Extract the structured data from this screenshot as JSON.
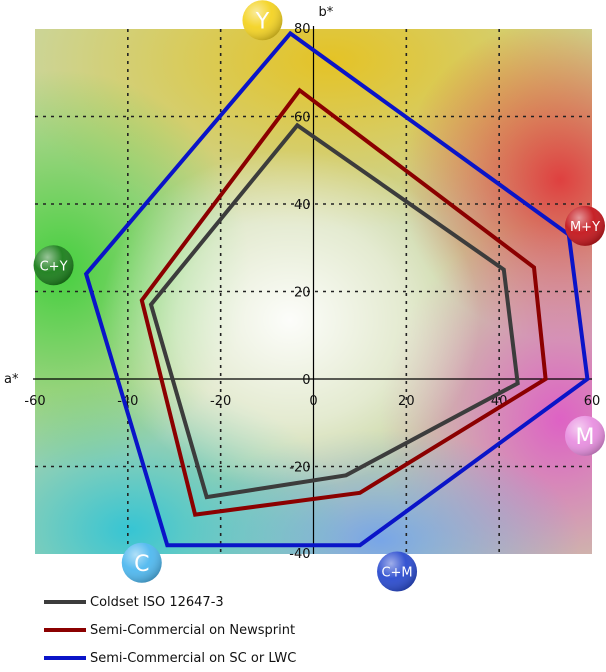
{
  "chart_data": {
    "type": "line",
    "title": "",
    "xlabel": "a*",
    "ylabel": "b*",
    "xlim": [
      -60,
      60
    ],
    "ylim": [
      -40,
      80
    ],
    "grid": true,
    "x_ticks": [
      -60,
      -40,
      -20,
      0,
      20,
      40,
      60
    ],
    "x_tick_labels": [
      "-60",
      "-40",
      "-20",
      "0",
      "20",
      "40",
      "60"
    ],
    "y_ticks": [
      -40,
      -20,
      0,
      20,
      40,
      60,
      80
    ],
    "y_tick_labels": [
      "-40",
      "-20",
      "0",
      "20",
      "40",
      "60",
      "80"
    ],
    "legend_position": "bottom-left",
    "series": [
      {
        "name": "Coldset ISO 12647-3",
        "color": "#3c3c3c",
        "closed": true,
        "x": [
          -3.5,
          41,
          44,
          7,
          -23,
          -35
        ],
        "y": [
          58,
          25,
          -1,
          -22,
          -27,
          17
        ]
      },
      {
        "name": "Semi-Commercial on Newsprint",
        "color": "#8b0000",
        "closed": true,
        "x": [
          -3,
          47.5,
          50,
          10,
          -25.5,
          -37
        ],
        "y": [
          66,
          25.5,
          0,
          -26,
          -31,
          18
        ]
      },
      {
        "name": "Semi-Commercial on SC or LWC",
        "color": "#0a14c8",
        "closed": true,
        "x": [
          -5,
          55,
          59,
          10,
          -31.5,
          -49
        ],
        "y": [
          79,
          33,
          0,
          -38,
          -38,
          24
        ]
      }
    ],
    "corner_labels": [
      {
        "text": "Y",
        "a": -11,
        "b": 82,
        "color": "#f4d322",
        "text_color": "#333333"
      },
      {
        "text": "M+Y",
        "a": 60,
        "b": 35,
        "color": "#c4161c",
        "text_color": "#ffffff"
      },
      {
        "text": "M",
        "a": 62,
        "b": -13,
        "color": "#e88fe0",
        "text_color": "#333333"
      },
      {
        "text": "C+M",
        "a": 18,
        "b": -44,
        "color": "#2a4bcf",
        "text_color": "#ffffff"
      },
      {
        "text": "C",
        "a": -37,
        "b": -42,
        "color": "#4fb8ef",
        "text_color": "#333333"
      },
      {
        "text": "C+Y",
        "a": -56,
        "b": 26,
        "color": "#1a7e1a",
        "text_color": "#ffffff"
      }
    ]
  }
}
